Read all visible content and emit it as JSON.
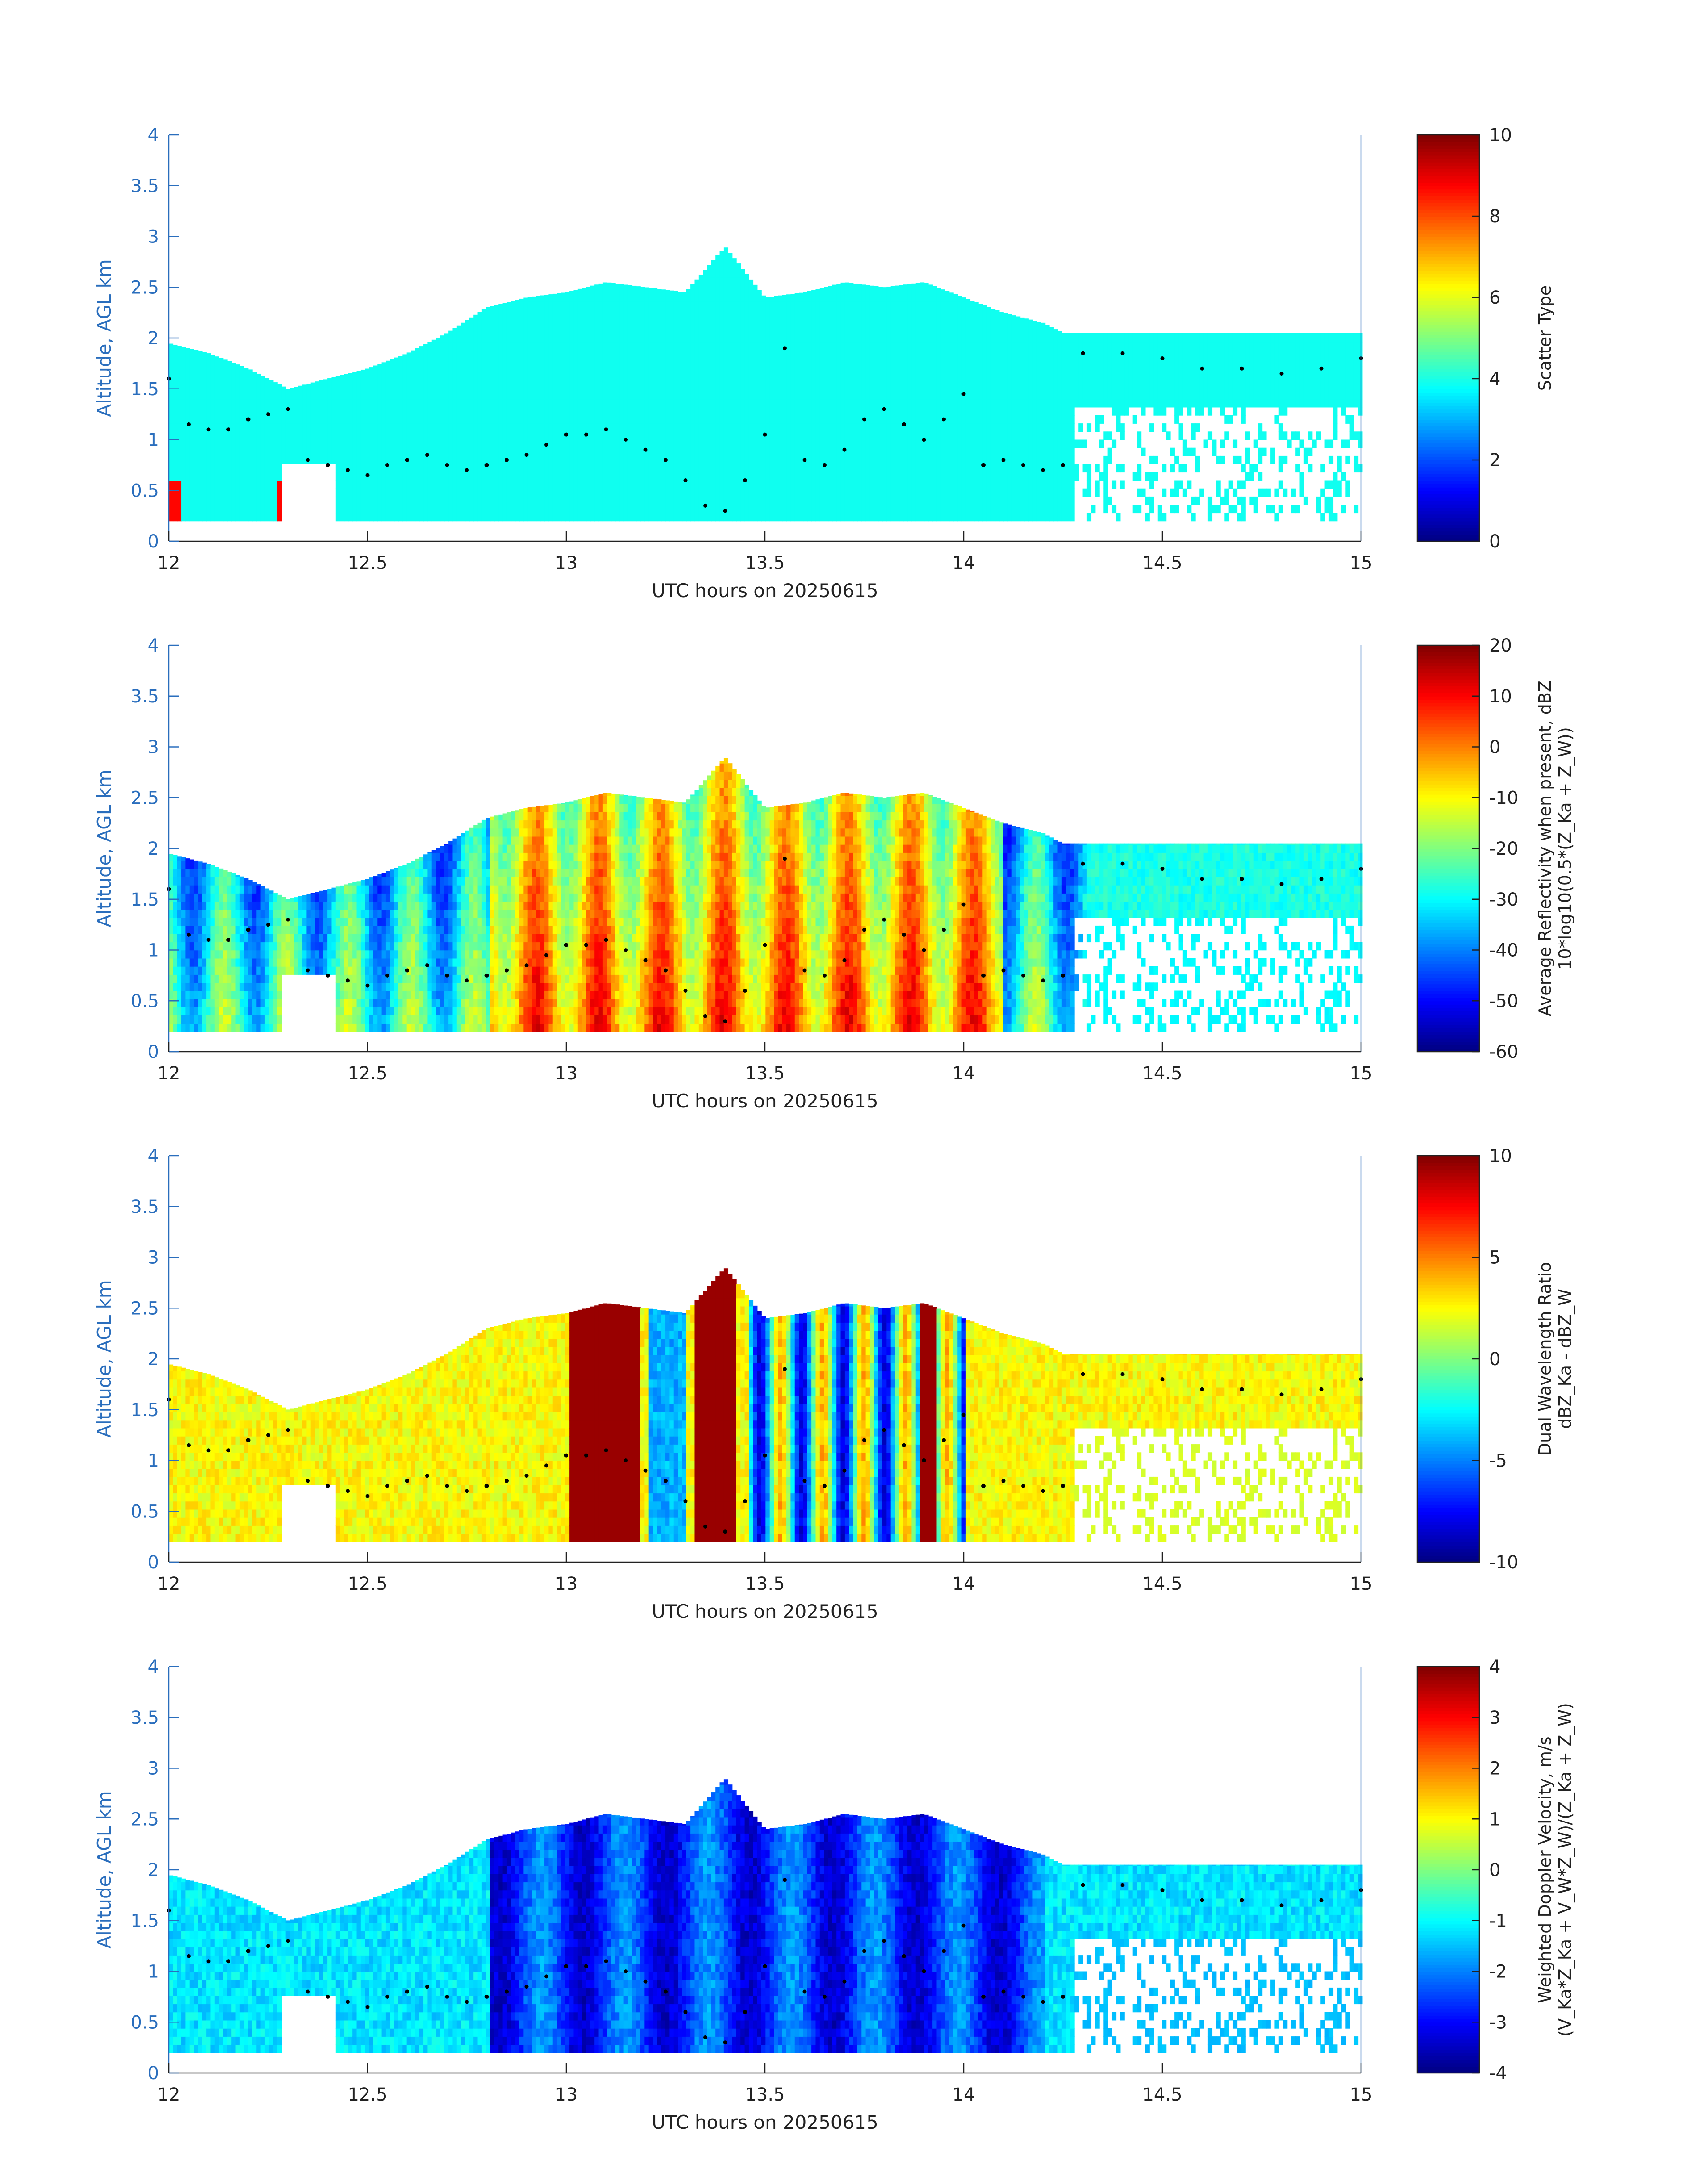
{
  "chart_data": [
    {
      "type": "heatmap",
      "xlabel": "UTC hours on 20250615",
      "ylabel": "Altitude, AGL km",
      "xlim": [
        12,
        15
      ],
      "ylim": [
        0,
        4
      ],
      "xticks": [
        "12",
        "12.5",
        "13",
        "13.5",
        "14",
        "14.5",
        "15"
      ],
      "yticks": [
        "0",
        "0.5",
        "1",
        "1.5",
        "2",
        "2.5",
        "3",
        "3.5",
        "4"
      ],
      "colorbar": {
        "label": "Scatter Type",
        "label2": "",
        "range": [
          0,
          10
        ],
        "ticks": [
          "0",
          "2",
          "4",
          "6",
          "8",
          "10"
        ],
        "colormap": "jet"
      },
      "field": "scatter"
    },
    {
      "type": "heatmap",
      "xlabel": "UTC hours on 20250615",
      "ylabel": "Altitude, AGL km",
      "xlim": [
        12,
        15
      ],
      "ylim": [
        0,
        4
      ],
      "xticks": [
        "12",
        "12.5",
        "13",
        "13.5",
        "14",
        "14.5",
        "15"
      ],
      "yticks": [
        "0",
        "0.5",
        "1",
        "1.5",
        "2",
        "2.5",
        "3",
        "3.5",
        "4"
      ],
      "colorbar": {
        "label": "Average Reflectivity when present, dBZ",
        "label2": "10*log10(0.5*(Z_Ka + Z_W))",
        "range": [
          -60,
          20
        ],
        "ticks": [
          "-60",
          "-50",
          "-40",
          "-30",
          "-20",
          "-10",
          "0",
          "10",
          "20"
        ],
        "colormap": "jet"
      },
      "field": "reflectivity"
    },
    {
      "type": "heatmap",
      "xlabel": "UTC hours on 20250615",
      "ylabel": "Altitude, AGL km",
      "xlim": [
        12,
        15
      ],
      "ylim": [
        0,
        4
      ],
      "xticks": [
        "12",
        "12.5",
        "13",
        "13.5",
        "14",
        "14.5",
        "15"
      ],
      "yticks": [
        "0",
        "0.5",
        "1",
        "1.5",
        "2",
        "2.5",
        "3",
        "3.5",
        "4"
      ],
      "colorbar": {
        "label": "Dual Wavelength Ratio",
        "label2": "dBZ_Ka - dBZ_W",
        "range": [
          -10,
          10
        ],
        "ticks": [
          "-10",
          "-5",
          "0",
          "5",
          "10"
        ],
        "colormap": "jet"
      },
      "field": "dwr"
    },
    {
      "type": "heatmap",
      "xlabel": "UTC hours on 20250615",
      "ylabel": "Altitude, AGL km",
      "xlim": [
        12,
        15
      ],
      "ylim": [
        0,
        4
      ],
      "xticks": [
        "12",
        "12.5",
        "13",
        "13.5",
        "14",
        "14.5",
        "15"
      ],
      "yticks": [
        "0",
        "0.5",
        "1",
        "1.5",
        "2",
        "2.5",
        "3",
        "3.5",
        "4"
      ],
      "colorbar": {
        "label": "Weighted Doppler Velocity, m/s",
        "label2": "(V_Ka*Z_Ka + V_W*Z_W)/(Z_Ka + Z_W)",
        "range": [
          -4,
          4
        ],
        "ticks": [
          "-4",
          "-3",
          "-2",
          "-1",
          "0",
          "1",
          "2",
          "3",
          "4"
        ],
        "colormap": "jet"
      },
      "field": "velocity"
    }
  ],
  "cloud_top_km": [
    [
      12.0,
      1.95
    ],
    [
      12.1,
      1.85
    ],
    [
      12.2,
      1.7
    ],
    [
      12.3,
      1.5
    ],
    [
      12.4,
      1.6
    ],
    [
      12.5,
      1.7
    ],
    [
      12.6,
      1.85
    ],
    [
      12.7,
      2.05
    ],
    [
      12.8,
      2.3
    ],
    [
      12.9,
      2.4
    ],
    [
      13.0,
      2.45
    ],
    [
      13.1,
      2.55
    ],
    [
      13.2,
      2.5
    ],
    [
      13.3,
      2.45
    ],
    [
      13.4,
      2.9
    ],
    [
      13.5,
      2.4
    ],
    [
      13.6,
      2.45
    ],
    [
      13.7,
      2.55
    ],
    [
      13.8,
      2.5
    ],
    [
      13.9,
      2.55
    ],
    [
      14.0,
      2.4
    ],
    [
      14.1,
      2.25
    ],
    [
      14.2,
      2.15
    ],
    [
      14.25,
      2.05
    ],
    [
      15.0,
      2.05
    ]
  ],
  "boundary_dots_km": [
    [
      12.0,
      1.6
    ],
    [
      12.05,
      1.15
    ],
    [
      12.1,
      1.1
    ],
    [
      12.15,
      1.1
    ],
    [
      12.2,
      1.2
    ],
    [
      12.25,
      1.25
    ],
    [
      12.3,
      1.3
    ],
    [
      12.35,
      0.8
    ],
    [
      12.4,
      0.75
    ],
    [
      12.45,
      0.7
    ],
    [
      12.5,
      0.65
    ],
    [
      12.55,
      0.75
    ],
    [
      12.6,
      0.8
    ],
    [
      12.65,
      0.85
    ],
    [
      12.7,
      0.75
    ],
    [
      12.75,
      0.7
    ],
    [
      12.8,
      0.75
    ],
    [
      12.85,
      0.8
    ],
    [
      12.9,
      0.85
    ],
    [
      12.95,
      0.95
    ],
    [
      13.0,
      1.05
    ],
    [
      13.05,
      1.05
    ],
    [
      13.1,
      1.1
    ],
    [
      13.15,
      1.0
    ],
    [
      13.2,
      0.9
    ],
    [
      13.25,
      0.8
    ],
    [
      13.3,
      0.6
    ],
    [
      13.35,
      0.35
    ],
    [
      13.4,
      0.3
    ],
    [
      13.45,
      0.6
    ],
    [
      13.5,
      1.05
    ],
    [
      13.55,
      1.9
    ],
    [
      13.6,
      0.8
    ],
    [
      13.65,
      0.75
    ],
    [
      13.7,
      0.9
    ],
    [
      13.75,
      1.2
    ],
    [
      13.8,
      1.3
    ],
    [
      13.85,
      1.15
    ],
    [
      13.9,
      1.0
    ],
    [
      13.95,
      1.2
    ],
    [
      14.0,
      1.45
    ],
    [
      14.05,
      0.75
    ],
    [
      14.1,
      0.8
    ],
    [
      14.15,
      0.75
    ],
    [
      14.2,
      0.7
    ],
    [
      14.25,
      0.75
    ],
    [
      14.3,
      1.85
    ],
    [
      14.4,
      1.85
    ],
    [
      14.5,
      1.8
    ],
    [
      14.6,
      1.7
    ],
    [
      14.7,
      1.7
    ],
    [
      14.8,
      1.65
    ],
    [
      14.9,
      1.7
    ],
    [
      15.0,
      1.8
    ]
  ]
}
